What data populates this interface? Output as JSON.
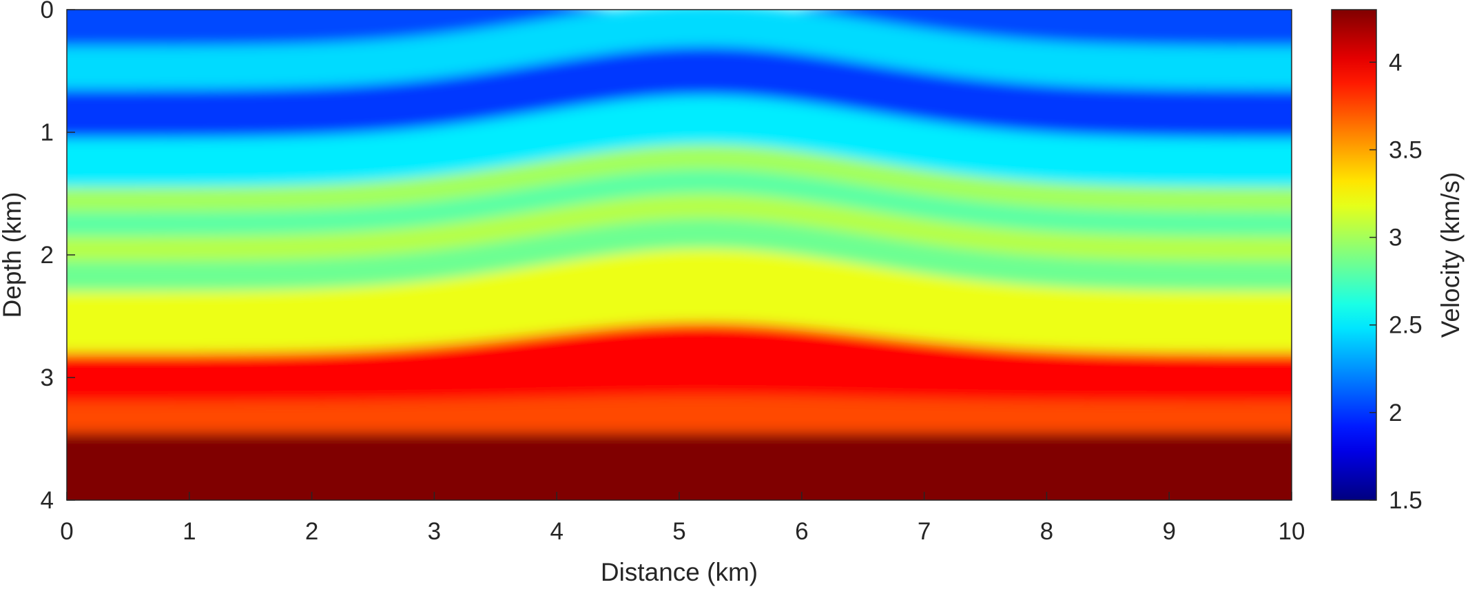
{
  "chart_data": {
    "type": "heatmap",
    "title": "",
    "xlabel": "Distance (km)",
    "ylabel": "Depth (km)",
    "colorbar_label": "Velocity (km/s)",
    "colormap": "jet",
    "xlim": [
      0,
      10
    ],
    "ylim": [
      0,
      4
    ],
    "y_reversed": true,
    "clim": [
      1.5,
      4.3
    ],
    "x_ticks": [
      0,
      1,
      2,
      3,
      4,
      5,
      6,
      7,
      8,
      9,
      10
    ],
    "y_ticks": [
      0,
      1,
      2,
      3,
      4
    ],
    "c_ticks": [
      1.5,
      2,
      2.5,
      3,
      3.5,
      4
    ],
    "x_tick_labels": [
      "0",
      "1",
      "2",
      "3",
      "4",
      "5",
      "6",
      "7",
      "8",
      "9",
      "10"
    ],
    "y_tick_labels": [
      "0",
      "1",
      "2",
      "3",
      "4"
    ],
    "c_tick_labels": [
      "1.5",
      "2",
      "2.5",
      "3",
      "3.5",
      "4"
    ],
    "grid": false,
    "velocity_layers_at_x0": [
      {
        "depth_top": 0.0,
        "depth_bottom": 0.3,
        "velocity": 2.05
      },
      {
        "depth_top": 0.3,
        "depth_bottom": 0.65,
        "velocity": 2.45
      },
      {
        "depth_top": 0.65,
        "depth_bottom": 1.05,
        "velocity": 2.0
      },
      {
        "depth_top": 1.05,
        "depth_bottom": 1.45,
        "velocity": 2.5
      },
      {
        "depth_top": 1.45,
        "depth_bottom": 1.65,
        "velocity": 3.0
      },
      {
        "depth_top": 1.65,
        "depth_bottom": 1.85,
        "velocity": 2.8
      },
      {
        "depth_top": 1.85,
        "depth_bottom": 2.05,
        "velocity": 3.05
      },
      {
        "depth_top": 2.05,
        "depth_bottom": 2.3,
        "velocity": 2.85
      },
      {
        "depth_top": 2.3,
        "depth_bottom": 2.8,
        "velocity": 3.2
      },
      {
        "depth_top": 2.8,
        "depth_bottom": 3.2,
        "velocity": 3.95
      },
      {
        "depth_top": 3.2,
        "depth_bottom": 3.45,
        "velocity": 3.75
      },
      {
        "depth_top": 3.45,
        "depth_bottom": 4.0,
        "velocity": 4.3
      }
    ]
  }
}
